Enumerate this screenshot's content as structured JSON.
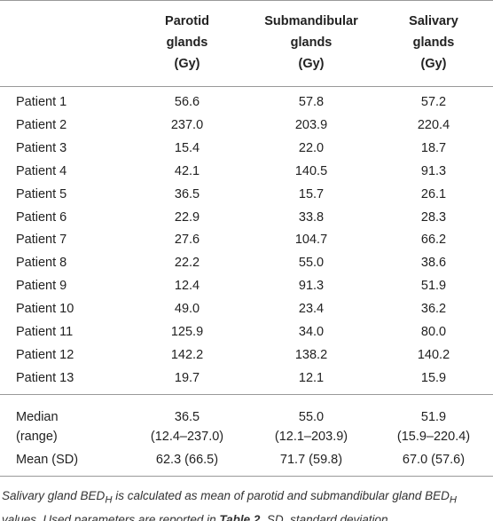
{
  "table": {
    "header": [
      [
        "Parotid",
        "glands",
        "(Gy)"
      ],
      [
        "Submandibular",
        "glands",
        "(Gy)"
      ],
      [
        "Salivary",
        "glands",
        "(Gy)"
      ]
    ],
    "rows": [
      [
        "Patient 1",
        "56.6",
        "57.8",
        "57.2"
      ],
      [
        "Patient 2",
        "237.0",
        "203.9",
        "220.4"
      ],
      [
        "Patient 3",
        "15.4",
        "22.0",
        "18.7"
      ],
      [
        "Patient 4",
        "42.1",
        "140.5",
        "91.3"
      ],
      [
        "Patient 5",
        "36.5",
        "15.7",
        "26.1"
      ],
      [
        "Patient 6",
        "22.9",
        "33.8",
        "28.3"
      ],
      [
        "Patient 7",
        "27.6",
        "104.7",
        "66.2"
      ],
      [
        "Patient 8",
        "22.2",
        "55.0",
        "38.6"
      ],
      [
        "Patient 9",
        "12.4",
        "91.3",
        "51.9"
      ],
      [
        "Patient 10",
        "49.0",
        "23.4",
        "36.2"
      ],
      [
        "Patient 11",
        "125.9",
        "34.0",
        "80.0"
      ],
      [
        "Patient 12",
        "142.2",
        "138.2",
        "140.2"
      ],
      [
        "Patient 13",
        "19.7",
        "12.1",
        "15.9"
      ]
    ],
    "summary": [
      [
        [
          "Median",
          "(range)"
        ],
        [
          "36.5",
          "(12.4–237.0)"
        ],
        [
          "55.0",
          "(12.1–203.9)"
        ],
        [
          "51.9",
          "(15.9–220.4)"
        ]
      ],
      [
        [
          "Mean (SD)"
        ],
        [
          "62.3 (66.5)"
        ],
        [
          "71.7 (59.8)"
        ],
        [
          "67.0 (57.6)"
        ]
      ]
    ]
  },
  "caption": [
    "Salivary gland BED",
    "H",
    " is calculated as mean of parotid and submandibular gland BED",
    "H",
    " values. Used parameters are reported in ",
    "Table 2",
    ". SD, standard deviation."
  ]
}
